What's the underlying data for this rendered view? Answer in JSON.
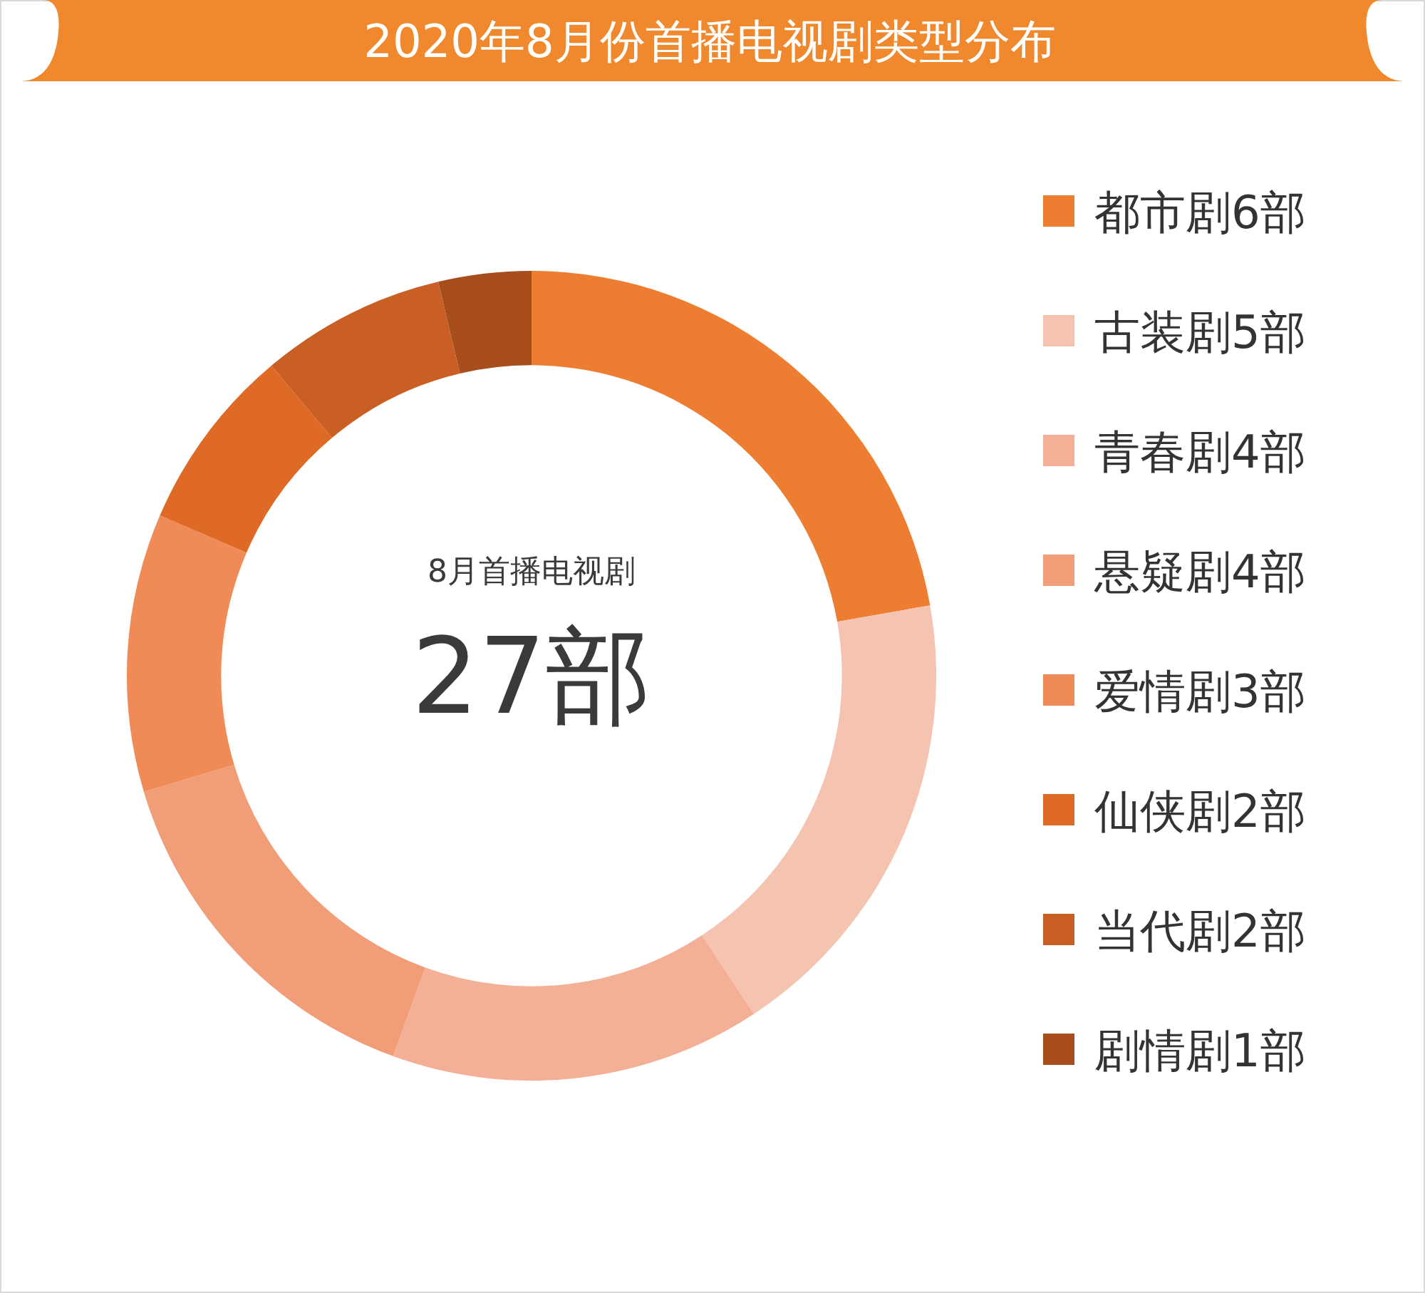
{
  "chart_data": {
    "type": "donut",
    "title": "2020年8月份首播电视剧类型分布",
    "categories": [
      "都市剧6部",
      "古装剧5部",
      "青春剧4部",
      "悬疑剧4部",
      "爱情剧3部",
      "仙侠剧2部",
      "当代剧2部",
      "剧情剧1部"
    ],
    "values": [
      6,
      5,
      4,
      4,
      3,
      2,
      2,
      1
    ],
    "colors": [
      "#ed7d31",
      "#f4c4b0",
      "#f3b096",
      "#f09d78",
      "#f08a56",
      "#de6a26",
      "#c95f24",
      "#a84d1c"
    ],
    "annotations": [
      "8月首播电视剧",
      "27部"
    ],
    "legend": "right"
  }
}
